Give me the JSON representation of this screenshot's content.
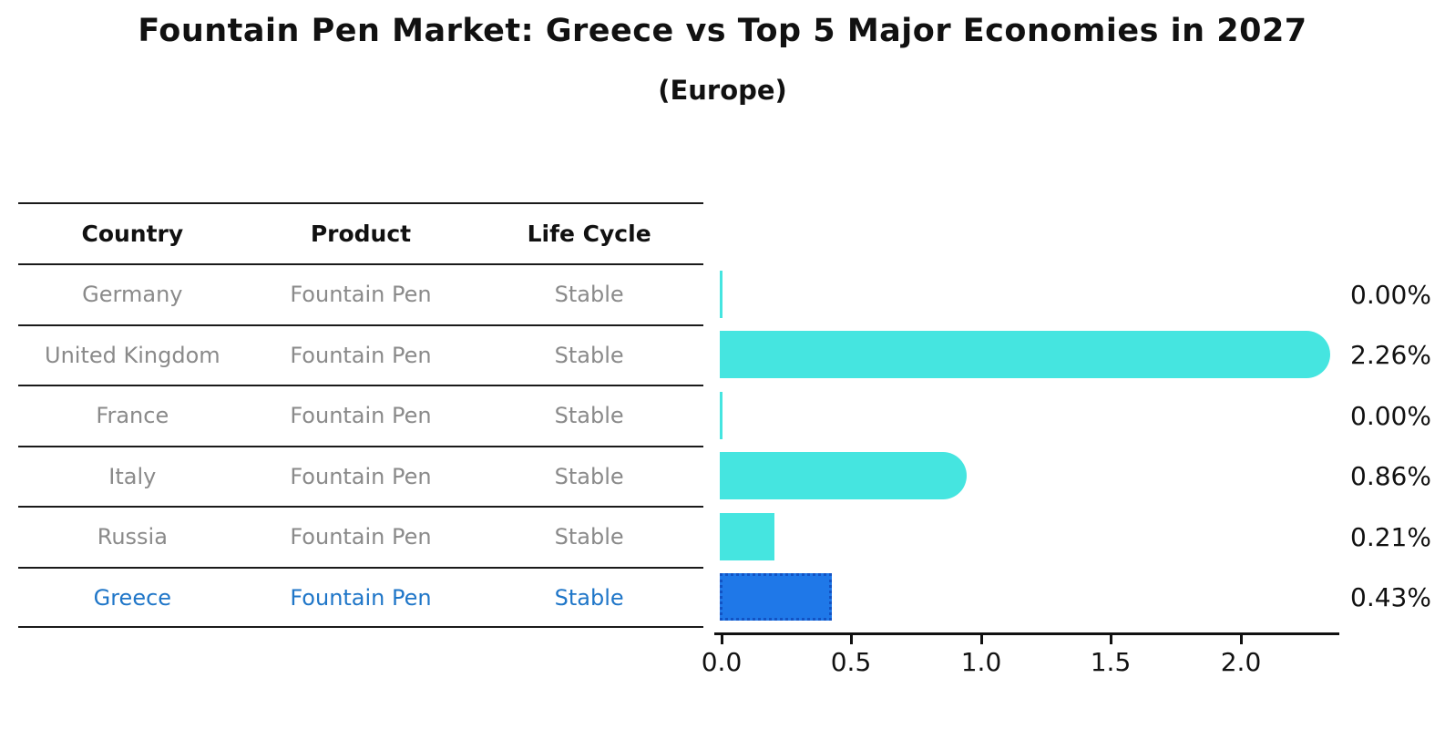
{
  "title": "Fountain Pen Market: Greece vs Top 5 Major Economies in 2027",
  "subtitle": "(Europe)",
  "colors": {
    "bar_cyan": "#45E5E0",
    "highlight_fill": "#1F78E8",
    "highlight_border": "#1253C4",
    "highlight_text": "#1F76C8",
    "row_text_gray": "#8a8a8a",
    "line_black": "#1a1a1a"
  },
  "table": {
    "headers": [
      "Country",
      "Product",
      "Life Cycle"
    ],
    "rows": [
      {
        "country": "Germany",
        "product": "Fountain Pen",
        "life_cycle": "Stable",
        "highlight": false
      },
      {
        "country": "United Kingdom",
        "product": "Fountain Pen",
        "life_cycle": "Stable",
        "highlight": false
      },
      {
        "country": "France",
        "product": "Fountain Pen",
        "life_cycle": "Stable",
        "highlight": false
      },
      {
        "country": "Italy",
        "product": "Fountain Pen",
        "life_cycle": "Stable",
        "highlight": false
      },
      {
        "country": "Russia",
        "product": "Fountain Pen",
        "life_cycle": "Stable",
        "highlight": false
      },
      {
        "country": "Greece",
        "product": "Fountain Pen",
        "life_cycle": "Stable",
        "highlight": true
      }
    ]
  },
  "chart_data": {
    "type": "bar",
    "orientation": "horizontal",
    "categories": [
      "Germany",
      "United Kingdom",
      "France",
      "Italy",
      "Russia",
      "Greece"
    ],
    "values": [
      0.0,
      2.26,
      0.0,
      0.86,
      0.21,
      0.43
    ],
    "value_labels": [
      "0.00%",
      "2.26%",
      "0.00%",
      "0.86%",
      "0.21%",
      "0.43%"
    ],
    "title": "Fountain Pen Market: Greece vs Top 5 Major Economies in 2027 (Europe)",
    "xlabel": "",
    "ylabel": "",
    "xlim": [
      0,
      2.35
    ],
    "xticks": [
      0.0,
      0.5,
      1.0,
      1.5,
      2.0
    ],
    "xtick_labels": [
      "0.0",
      "0.5",
      "1.0",
      "1.5",
      "2.0"
    ],
    "grid": false,
    "legend": false,
    "bar_caps": [
      "flat",
      "round",
      "flat",
      "round",
      "flat",
      "flat"
    ],
    "highlight_index": 5
  }
}
